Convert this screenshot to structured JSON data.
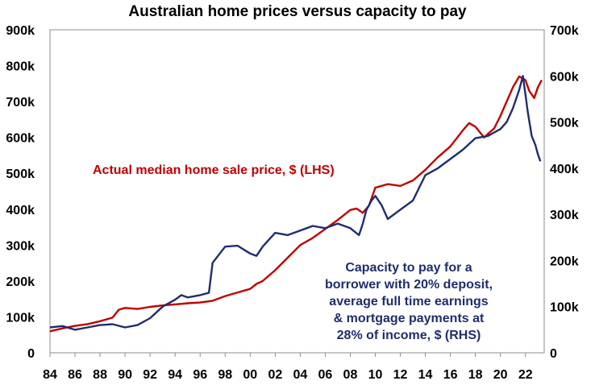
{
  "chart_data": {
    "type": "line",
    "title": "Australian home prices versus capacity to pay",
    "xlabel": "",
    "ylabel_left": "",
    "ylabel_right": "",
    "x_ticks": [
      "84",
      "86",
      "88",
      "90",
      "92",
      "94",
      "96",
      "98",
      "00",
      "02",
      "04",
      "06",
      "08",
      "10",
      "12",
      "14",
      "16",
      "18",
      "20",
      "22"
    ],
    "x_range": [
      1984,
      2023.5
    ],
    "y_left": {
      "ylim": [
        0,
        900000
      ],
      "ticks": [
        "0",
        "100k",
        "200k",
        "300k",
        "400k",
        "500k",
        "600k",
        "700k",
        "800k",
        "900k"
      ]
    },
    "y_right": {
      "ylim": [
        0,
        700000
      ],
      "ticks": [
        "0",
        "100k",
        "200k",
        "300k",
        "400k",
        "500k",
        "600k",
        "700k"
      ]
    },
    "grid": false,
    "legend": "none",
    "series": [
      {
        "name": "Actual median home sale price, $ (LHS)",
        "axis": "left",
        "color": "#c00000",
        "x": [
          1984,
          1985,
          1986,
          1987,
          1988,
          1989,
          1989.5,
          1990,
          1991,
          1992,
          1993,
          1994,
          1995,
          1996,
          1997,
          1998,
          1999,
          2000,
          2000.5,
          2001,
          2002,
          2003,
          2004,
          2005,
          2006,
          2007,
          2008,
          2008.5,
          2009,
          2009.5,
          2010,
          2010.5,
          2011,
          2012,
          2013,
          2014,
          2015,
          2016,
          2017,
          2017.5,
          2018,
          2018.7,
          2019,
          2019.5,
          2020,
          2021,
          2021.5,
          2022,
          2022.3,
          2022.7,
          2023,
          2023.3
        ],
        "values": [
          60000,
          68000,
          75000,
          80000,
          88000,
          98000,
          120000,
          125000,
          122000,
          128000,
          132000,
          135000,
          138000,
          140000,
          145000,
          158000,
          168000,
          178000,
          192000,
          200000,
          230000,
          265000,
          300000,
          320000,
          345000,
          370000,
          398000,
          402000,
          390000,
          410000,
          460000,
          465000,
          470000,
          465000,
          480000,
          510000,
          545000,
          575000,
          620000,
          640000,
          630000,
          600000,
          610000,
          625000,
          660000,
          740000,
          770000,
          760000,
          730000,
          710000,
          740000,
          760000
        ]
      },
      {
        "name": "Capacity to pay for a borrower with 20% deposit, average full time earnings & mortgage payments at 28% of income, $ (RHS)",
        "axis": "right",
        "color": "#1f2d6e",
        "x": [
          1984,
          1985,
          1986,
          1987,
          1988,
          1989,
          1990,
          1991,
          1992,
          1993,
          1994,
          1994.5,
          1995,
          1996,
          1996.7,
          1997,
          1998,
          1999,
          2000,
          2000.5,
          2001,
          2002,
          2003,
          2004,
          2005,
          2006,
          2007,
          2008,
          2008.7,
          2009,
          2009.3,
          2009.7,
          2010,
          2010.5,
          2011,
          2012,
          2013,
          2014,
          2015,
          2016,
          2017,
          2018,
          2019,
          2020,
          2020.5,
          2021,
          2021.5,
          2021.8,
          2022,
          2022.2,
          2022.5,
          2022.8,
          2023,
          2023.2
        ],
        "values": [
          55000,
          58000,
          50000,
          55000,
          60000,
          62000,
          55000,
          60000,
          75000,
          100000,
          115000,
          125000,
          120000,
          125000,
          130000,
          195000,
          230000,
          232000,
          215000,
          210000,
          230000,
          260000,
          255000,
          265000,
          275000,
          270000,
          280000,
          270000,
          255000,
          280000,
          310000,
          330000,
          340000,
          320000,
          290000,
          310000,
          330000,
          385000,
          400000,
          420000,
          440000,
          465000,
          470000,
          485000,
          500000,
          530000,
          570000,
          600000,
          560000,
          520000,
          470000,
          450000,
          430000,
          415000
        ]
      }
    ],
    "annotations": [
      {
        "lines": [
          "Actual median home sale price, $ (LHS)"
        ],
        "color": "#c00000"
      },
      {
        "lines": [
          "Capacity to pay for a",
          "borrower with 20% deposit,",
          "average full time earnings",
          "& mortgage payments at",
          "28% of income, $ (RHS)"
        ],
        "color": "#1f2d6e"
      }
    ]
  }
}
